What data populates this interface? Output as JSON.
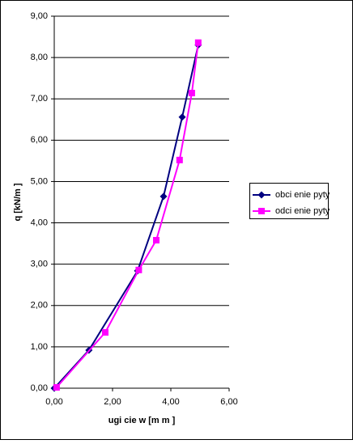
{
  "chart_data": {
    "type": "scatter",
    "lines": true,
    "y_label": "q [kN/m ]",
    "x_label": "ugi  cie w [m m ]",
    "xlim": [
      0,
      6
    ],
    "xticks": [
      {
        "value": 0,
        "label": "0,00"
      },
      {
        "value": 2,
        "label": "2,00"
      },
      {
        "value": 4,
        "label": "4,00"
      },
      {
        "value": 6,
        "label": "6,00"
      }
    ],
    "ylim": [
      0,
      9
    ],
    "yticks": [
      {
        "value": 0,
        "label": "0,00"
      },
      {
        "value": 1,
        "label": "1,00"
      },
      {
        "value": 2,
        "label": "2,00"
      },
      {
        "value": 3,
        "label": "3,00"
      },
      {
        "value": 4,
        "label": "4,00"
      },
      {
        "value": 5,
        "label": "5,00"
      },
      {
        "value": 6,
        "label": "6,00"
      },
      {
        "value": 7,
        "label": "7,00"
      },
      {
        "value": 8,
        "label": "8,00"
      },
      {
        "value": 9,
        "label": "9,00"
      }
    ],
    "grid": true,
    "legend": "right",
    "series": [
      {
        "name": "obci  enie pyty",
        "color": "#000080",
        "marker": "diamond",
        "x": [
          0,
          1.19,
          2.86,
          3.75,
          4.39,
          4.94
        ],
        "values": [
          0,
          0.92,
          2.84,
          4.64,
          6.56,
          8.3
        ]
      },
      {
        "name": "odci  enie pyty",
        "color": "#ff00ff",
        "marker": "square",
        "x": [
          0.08,
          1.75,
          2.9,
          3.5,
          4.3,
          4.72,
          4.94
        ],
        "values": [
          0.02,
          1.35,
          2.86,
          3.58,
          5.52,
          7.14,
          8.36
        ]
      }
    ]
  }
}
